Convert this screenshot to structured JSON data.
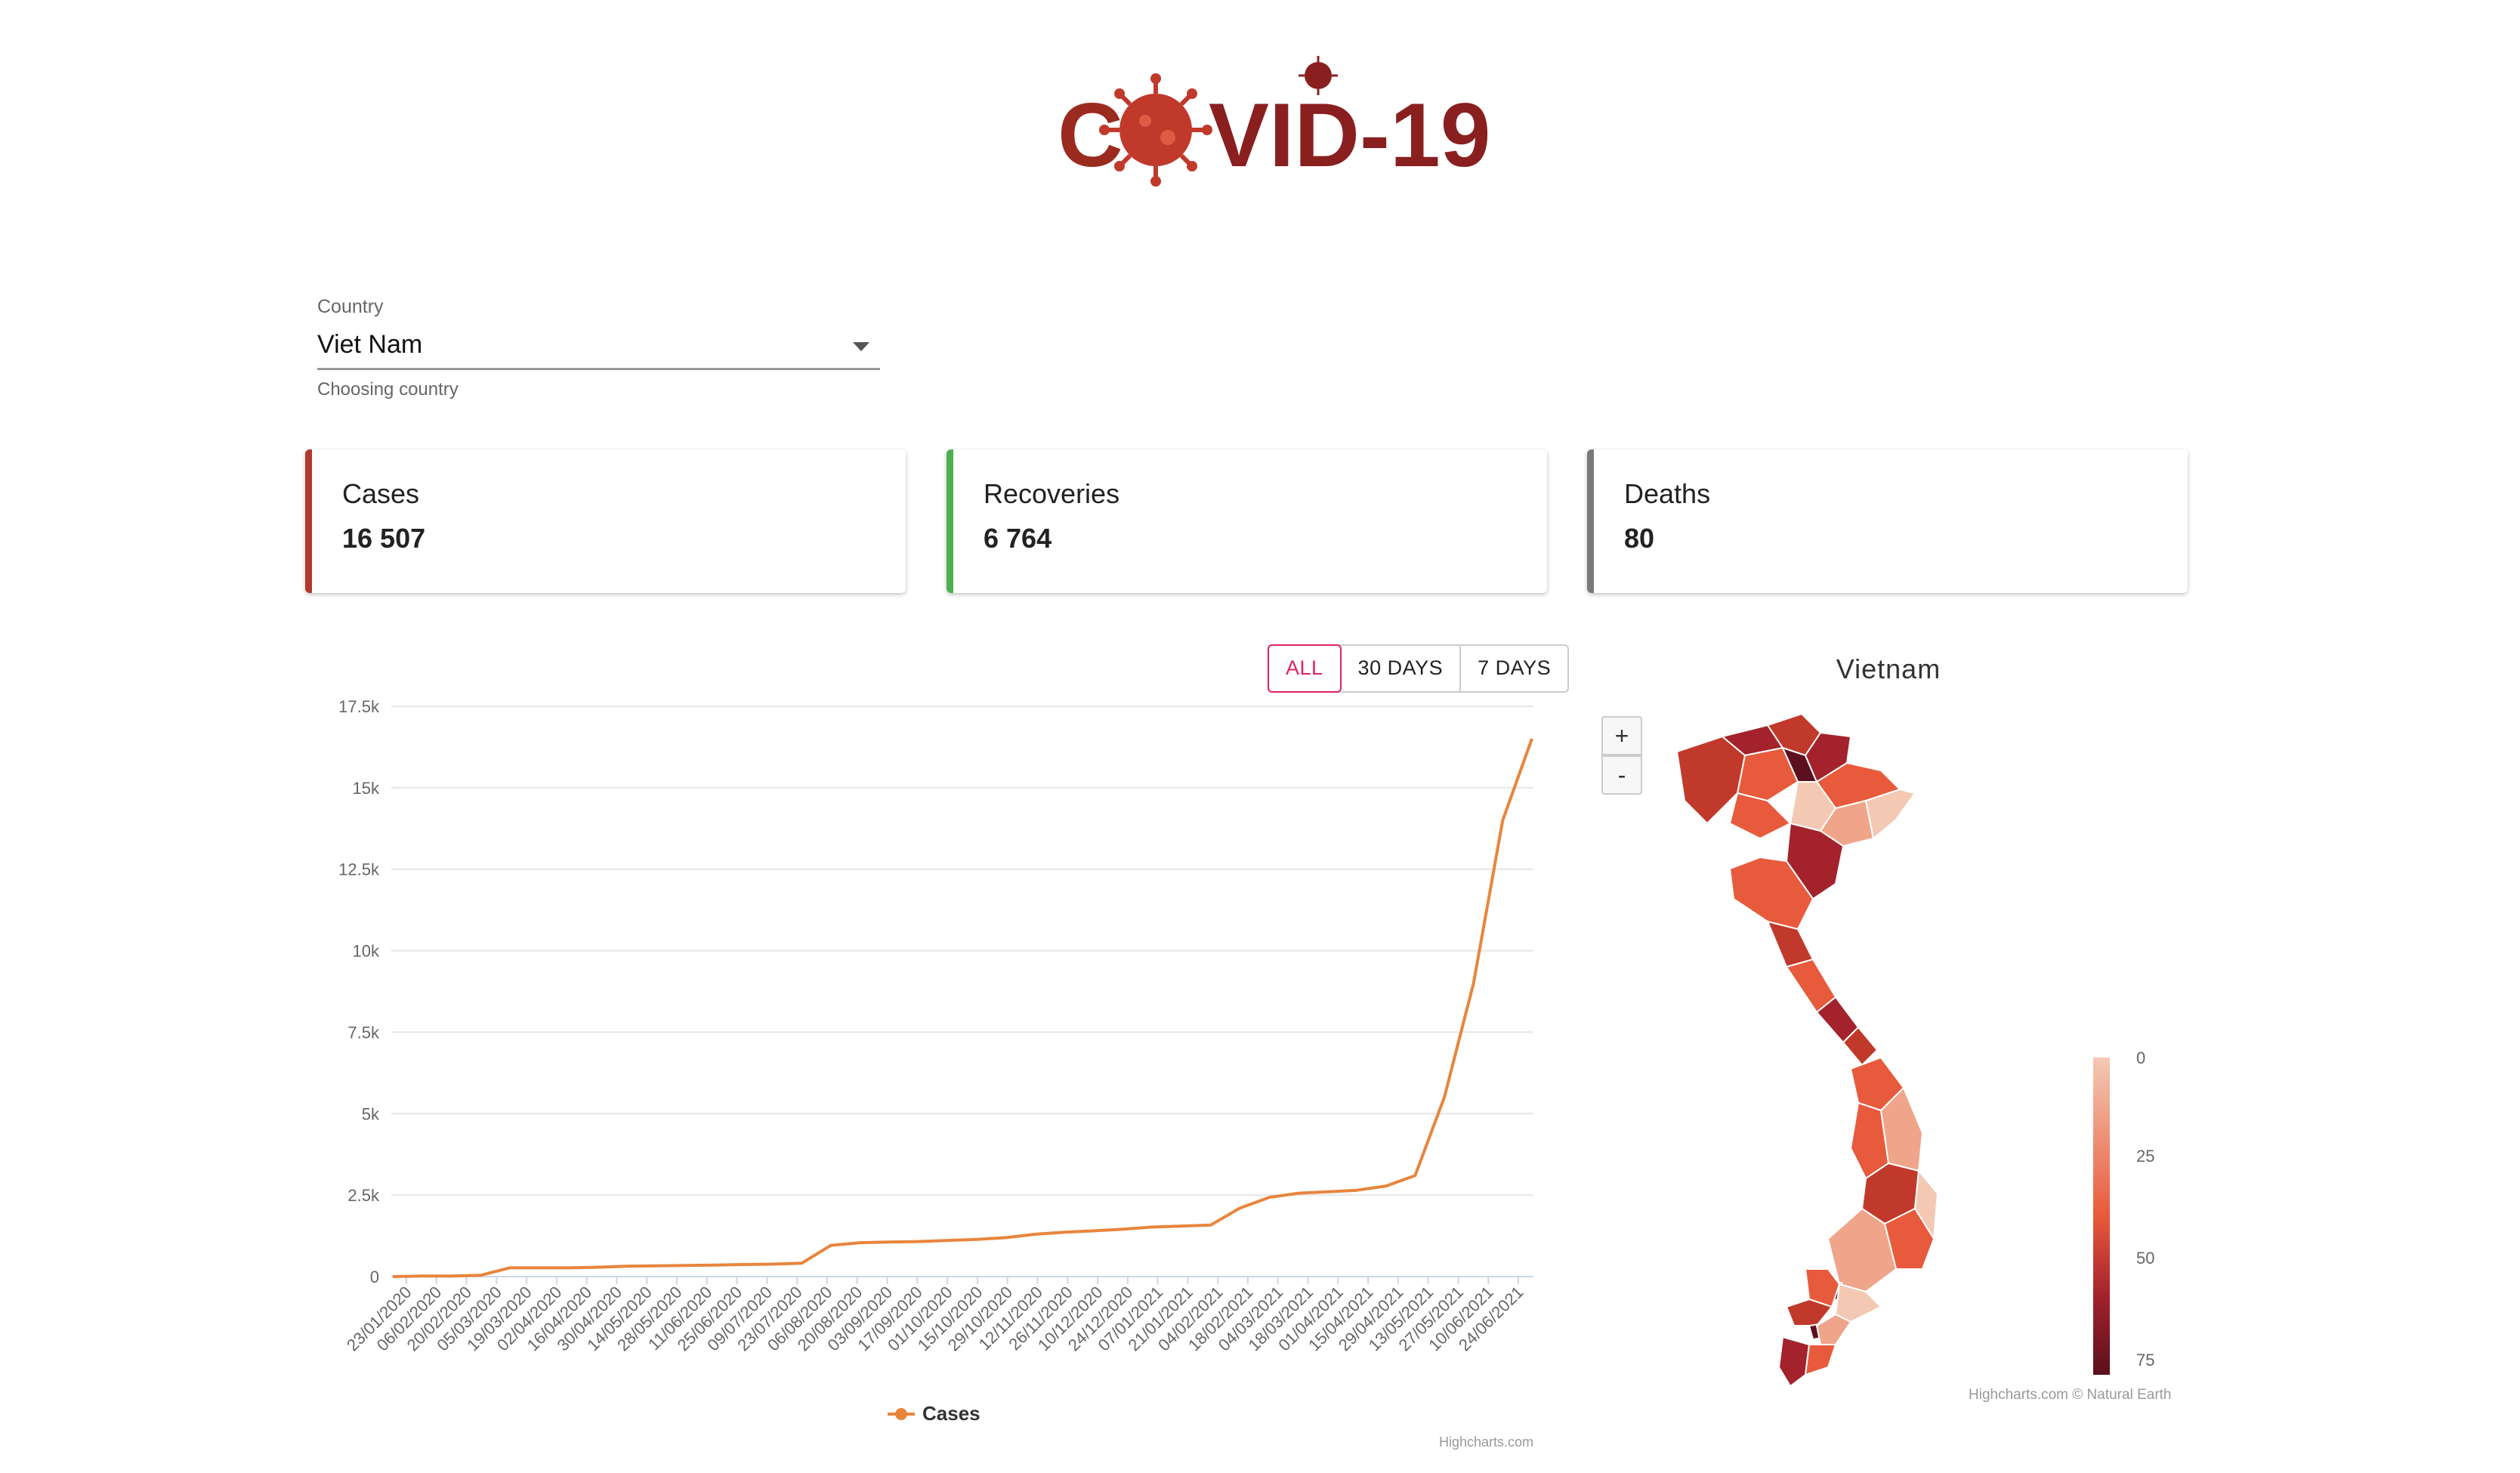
{
  "header": {
    "logo_text": "COVID-19"
  },
  "country": {
    "label": "Country",
    "value": "Viet Nam",
    "helper": "Choosing country"
  },
  "stats": {
    "cases": {
      "title": "Cases",
      "value": "16 507"
    },
    "recoveries": {
      "title": "Recoveries",
      "value": "6 764"
    },
    "deaths": {
      "title": "Deaths",
      "value": "80"
    }
  },
  "range_buttons": {
    "all": "ALL",
    "days30": "30 DAYS",
    "days7": "7 DAYS",
    "selected": "ALL"
  },
  "chart_data": {
    "type": "line",
    "title": "",
    "series": [
      {
        "name": "Cases",
        "values": [
          0,
          16,
          16,
          40,
          268,
          268,
          270,
          288,
          320,
          330,
          340,
          355,
          370,
          382,
          410,
          960,
          1040,
          1060,
          1075,
          1110,
          1140,
          1195,
          1300,
          1360,
          1405,
          1455,
          1520,
          1550,
          1580,
          2100,
          2430,
          2560,
          2600,
          2650,
          2780,
          3100,
          5500,
          9000,
          14000,
          16507
        ]
      }
    ],
    "x_ticks": [
      "23/01/2020",
      "06/02/2020",
      "20/02/2020",
      "05/03/2020",
      "19/03/2020",
      "02/04/2020",
      "16/04/2020",
      "30/04/2020",
      "14/05/2020",
      "28/05/2020",
      "11/06/2020",
      "25/06/2020",
      "09/07/2020",
      "23/07/2020",
      "06/08/2020",
      "20/08/2020",
      "03/09/2020",
      "17/09/2020",
      "01/10/2020",
      "15/10/2020",
      "29/10/2020",
      "12/11/2020",
      "26/11/2020",
      "10/12/2020",
      "24/12/2020",
      "07/01/2021",
      "21/01/2021",
      "04/02/2021",
      "18/02/2021",
      "04/03/2021",
      "18/03/2021",
      "01/04/2021",
      "15/04/2021",
      "29/04/2021",
      "13/05/2021",
      "27/05/2021",
      "10/06/2021",
      "24/06/2021"
    ],
    "y_ticks": [
      "0",
      "2.5k",
      "5k",
      "7.5k",
      "10k",
      "12.5k",
      "15k",
      "17.5k"
    ],
    "ylim": [
      0,
      17500
    ],
    "legend": "bottom-center",
    "grid": true,
    "line_color": "#e8853d",
    "credit": "Highcharts.com"
  },
  "map": {
    "title": "Vietnam",
    "zoom_in": "+",
    "zoom_out": "-",
    "legend_ticks": [
      "0",
      "25",
      "50",
      "75"
    ],
    "credit": "Highcharts.com © Natural Earth",
    "colors": {
      "low": "#f4c9b4",
      "mid": "#e85a3c",
      "high": "#a3222c",
      "max": "#5c0f1e"
    }
  }
}
